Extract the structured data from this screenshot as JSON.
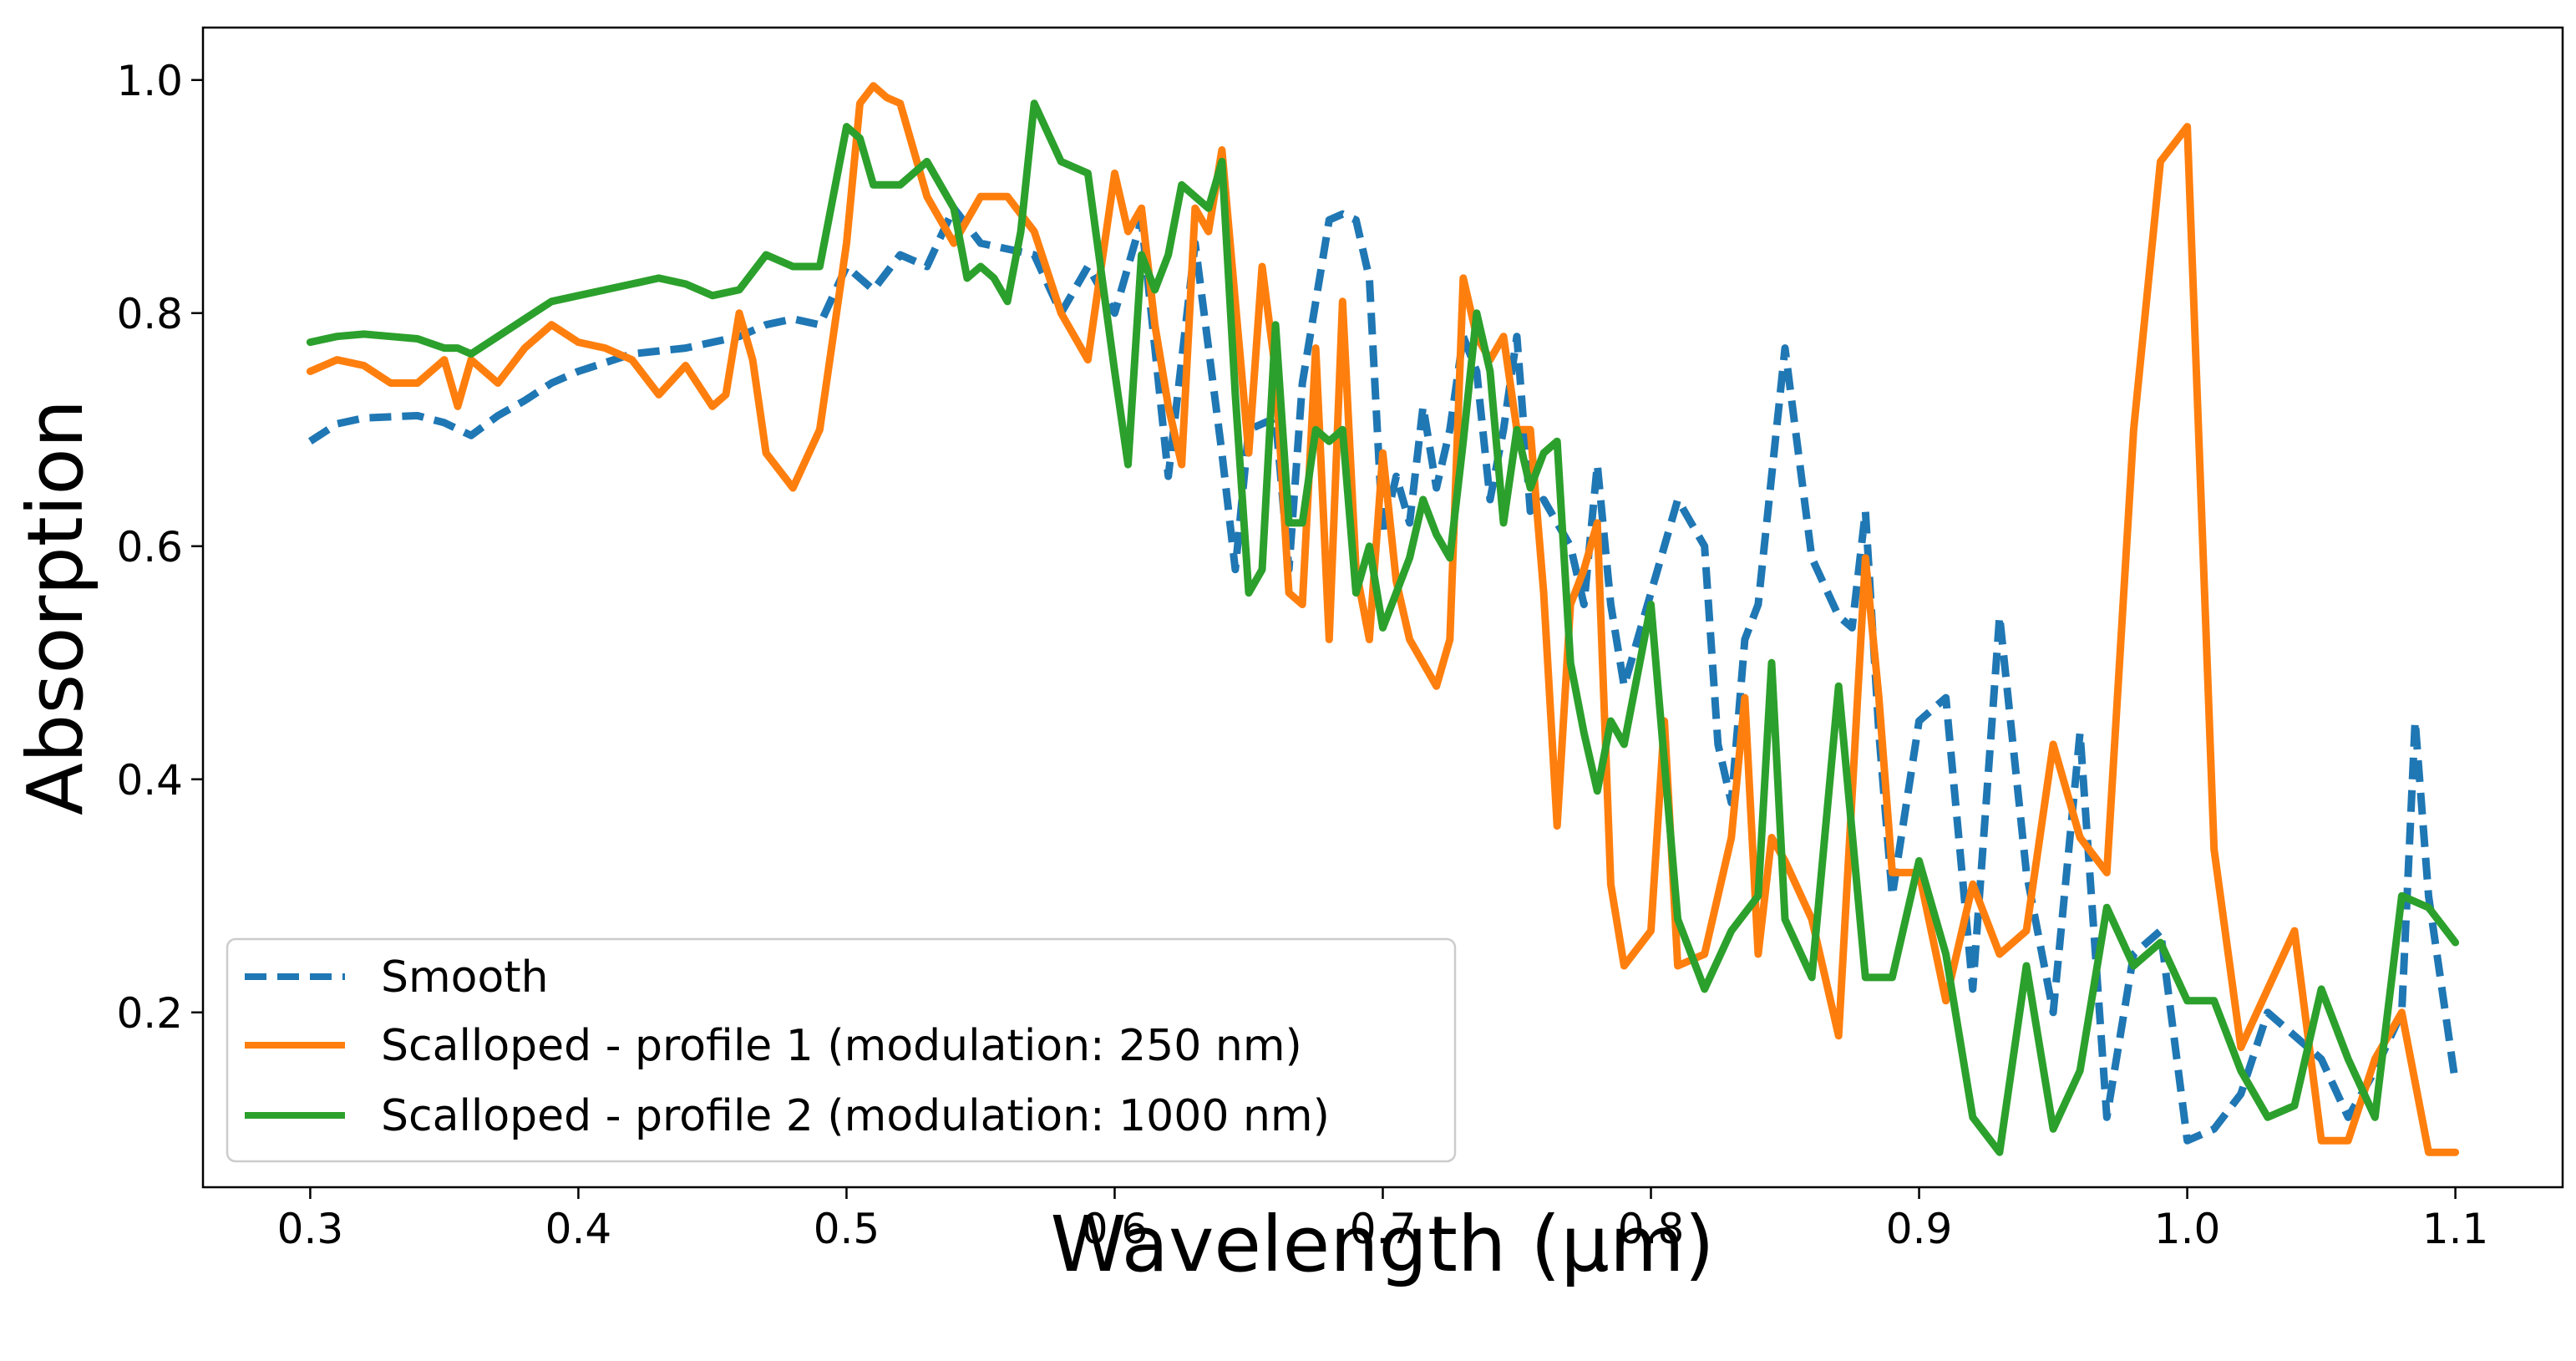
{
  "chart_data": {
    "type": "line",
    "title": "",
    "xlabel": "Wavelength (µm)",
    "ylabel": "Absorption",
    "xlim": [
      0.26,
      1.14
    ],
    "ylim": [
      0.05,
      1.045
    ],
    "xticks": [
      0.3,
      0.4,
      0.5,
      0.6,
      0.7,
      0.8,
      0.9,
      1.0,
      1.1
    ],
    "xtick_labels": [
      "0.3",
      "0.4",
      "0.5",
      "0.6",
      "0.7",
      "0.8",
      "0.9",
      "1.0",
      "1.1"
    ],
    "yticks": [
      0.2,
      0.4,
      0.6,
      0.8,
      1.0
    ],
    "ytick_labels": [
      "0.2",
      "0.4",
      "0.6",
      "0.8",
      "1.0"
    ],
    "grid": false,
    "legend_position": "lower-left",
    "series": [
      {
        "name": "Smooth",
        "color": "#1f77b4",
        "style": "dashed",
        "x": [
          0.3,
          0.31,
          0.32,
          0.34,
          0.35,
          0.36,
          0.37,
          0.38,
          0.39,
          0.4,
          0.42,
          0.44,
          0.46,
          0.47,
          0.48,
          0.49,
          0.5,
          0.51,
          0.52,
          0.53,
          0.54,
          0.55,
          0.56,
          0.57,
          0.58,
          0.59,
          0.6,
          0.61,
          0.62,
          0.63,
          0.64,
          0.645,
          0.65,
          0.66,
          0.665,
          0.67,
          0.68,
          0.685,
          0.69,
          0.695,
          0.7,
          0.705,
          0.71,
          0.715,
          0.72,
          0.725,
          0.73,
          0.735,
          0.74,
          0.745,
          0.75,
          0.755,
          0.76,
          0.765,
          0.77,
          0.775,
          0.78,
          0.785,
          0.79,
          0.8,
          0.81,
          0.82,
          0.825,
          0.83,
          0.835,
          0.84,
          0.85,
          0.86,
          0.87,
          0.875,
          0.88,
          0.885,
          0.89,
          0.9,
          0.91,
          0.92,
          0.93,
          0.94,
          0.95,
          0.96,
          0.97,
          0.98,
          0.99,
          1.0,
          1.01,
          1.02,
          1.03,
          1.04,
          1.05,
          1.06,
          1.07,
          1.08,
          1.085,
          1.09,
          1.1
        ],
        "y": [
          0.69,
          0.705,
          0.71,
          0.712,
          0.706,
          0.695,
          0.712,
          0.725,
          0.74,
          0.75,
          0.765,
          0.77,
          0.78,
          0.79,
          0.795,
          0.79,
          0.84,
          0.82,
          0.85,
          0.84,
          0.89,
          0.86,
          0.855,
          0.85,
          0.8,
          0.84,
          0.8,
          0.88,
          0.66,
          0.86,
          0.68,
          0.58,
          0.7,
          0.71,
          0.58,
          0.74,
          0.88,
          0.885,
          0.88,
          0.83,
          0.61,
          0.66,
          0.62,
          0.72,
          0.65,
          0.7,
          0.78,
          0.75,
          0.64,
          0.7,
          0.78,
          0.63,
          0.64,
          0.62,
          0.6,
          0.55,
          0.67,
          0.55,
          0.48,
          0.56,
          0.64,
          0.6,
          0.43,
          0.38,
          0.52,
          0.55,
          0.77,
          0.59,
          0.54,
          0.53,
          0.63,
          0.44,
          0.3,
          0.45,
          0.47,
          0.22,
          0.54,
          0.32,
          0.2,
          0.44,
          0.11,
          0.25,
          0.27,
          0.09,
          0.1,
          0.13,
          0.2,
          0.18,
          0.16,
          0.11,
          0.15,
          0.2,
          0.45,
          0.3,
          0.14
        ]
      },
      {
        "name": "Scalloped - profile 1 (modulation: 250 nm)",
        "color": "#ff7f0e",
        "style": "solid",
        "x": [
          0.3,
          0.31,
          0.32,
          0.33,
          0.34,
          0.35,
          0.355,
          0.36,
          0.37,
          0.38,
          0.39,
          0.4,
          0.41,
          0.42,
          0.43,
          0.44,
          0.45,
          0.455,
          0.46,
          0.465,
          0.47,
          0.48,
          0.49,
          0.5,
          0.505,
          0.51,
          0.515,
          0.52,
          0.53,
          0.54,
          0.55,
          0.56,
          0.57,
          0.58,
          0.59,
          0.6,
          0.605,
          0.61,
          0.615,
          0.62,
          0.625,
          0.63,
          0.635,
          0.64,
          0.645,
          0.65,
          0.655,
          0.66,
          0.665,
          0.67,
          0.675,
          0.68,
          0.685,
          0.69,
          0.695,
          0.7,
          0.705,
          0.71,
          0.72,
          0.725,
          0.73,
          0.735,
          0.74,
          0.745,
          0.75,
          0.755,
          0.76,
          0.765,
          0.77,
          0.775,
          0.78,
          0.785,
          0.79,
          0.8,
          0.805,
          0.81,
          0.82,
          0.83,
          0.835,
          0.84,
          0.845,
          0.85,
          0.86,
          0.87,
          0.88,
          0.885,
          0.89,
          0.9,
          0.91,
          0.92,
          0.93,
          0.94,
          0.95,
          0.96,
          0.97,
          0.98,
          0.99,
          1.0,
          1.01,
          1.02,
          1.03,
          1.04,
          1.05,
          1.06,
          1.07,
          1.08,
          1.09,
          1.1
        ],
        "y": [
          0.75,
          0.76,
          0.755,
          0.74,
          0.74,
          0.76,
          0.72,
          0.76,
          0.74,
          0.77,
          0.79,
          0.775,
          0.77,
          0.76,
          0.73,
          0.755,
          0.72,
          0.73,
          0.8,
          0.76,
          0.68,
          0.65,
          0.7,
          0.86,
          0.98,
          0.995,
          0.985,
          0.98,
          0.9,
          0.86,
          0.9,
          0.9,
          0.87,
          0.8,
          0.76,
          0.92,
          0.87,
          0.89,
          0.79,
          0.72,
          0.67,
          0.89,
          0.87,
          0.94,
          0.81,
          0.68,
          0.84,
          0.75,
          0.56,
          0.55,
          0.77,
          0.52,
          0.81,
          0.58,
          0.52,
          0.68,
          0.57,
          0.52,
          0.48,
          0.52,
          0.83,
          0.78,
          0.76,
          0.78,
          0.7,
          0.7,
          0.56,
          0.36,
          0.55,
          0.58,
          0.62,
          0.31,
          0.24,
          0.27,
          0.45,
          0.24,
          0.25,
          0.35,
          0.47,
          0.25,
          0.35,
          0.33,
          0.28,
          0.18,
          0.59,
          0.47,
          0.32,
          0.32,
          0.21,
          0.31,
          0.25,
          0.27,
          0.43,
          0.35,
          0.32,
          0.7,
          0.93,
          0.96,
          0.34,
          0.17,
          0.22,
          0.27,
          0.09,
          0.09,
          0.16,
          0.2,
          0.08,
          0.08
        ]
      },
      {
        "name": "Scalloped - profile 2 (modulation: 1000 nm)",
        "color": "#2ca02c",
        "style": "solid",
        "x": [
          0.3,
          0.31,
          0.32,
          0.33,
          0.34,
          0.35,
          0.355,
          0.36,
          0.37,
          0.38,
          0.39,
          0.4,
          0.41,
          0.42,
          0.43,
          0.44,
          0.45,
          0.46,
          0.47,
          0.48,
          0.49,
          0.5,
          0.505,
          0.51,
          0.52,
          0.53,
          0.54,
          0.545,
          0.55,
          0.555,
          0.56,
          0.565,
          0.57,
          0.58,
          0.59,
          0.6,
          0.605,
          0.61,
          0.615,
          0.62,
          0.625,
          0.63,
          0.635,
          0.64,
          0.645,
          0.65,
          0.655,
          0.66,
          0.665,
          0.67,
          0.675,
          0.68,
          0.685,
          0.69,
          0.695,
          0.7,
          0.705,
          0.71,
          0.715,
          0.72,
          0.725,
          0.73,
          0.735,
          0.74,
          0.745,
          0.75,
          0.755,
          0.76,
          0.765,
          0.77,
          0.775,
          0.78,
          0.785,
          0.79,
          0.8,
          0.81,
          0.82,
          0.83,
          0.84,
          0.845,
          0.85,
          0.86,
          0.87,
          0.88,
          0.89,
          0.9,
          0.91,
          0.92,
          0.93,
          0.94,
          0.95,
          0.96,
          0.97,
          0.98,
          0.99,
          1.0,
          1.01,
          1.02,
          1.03,
          1.04,
          1.05,
          1.06,
          1.07,
          1.08,
          1.09,
          1.1
        ],
        "y": [
          0.775,
          0.78,
          0.782,
          0.78,
          0.778,
          0.77,
          0.77,
          0.765,
          0.78,
          0.795,
          0.81,
          0.815,
          0.82,
          0.825,
          0.83,
          0.825,
          0.815,
          0.82,
          0.85,
          0.84,
          0.84,
          0.96,
          0.95,
          0.91,
          0.91,
          0.93,
          0.89,
          0.83,
          0.84,
          0.83,
          0.81,
          0.87,
          0.98,
          0.93,
          0.92,
          0.75,
          0.67,
          0.85,
          0.82,
          0.85,
          0.91,
          0.9,
          0.89,
          0.93,
          0.73,
          0.56,
          0.58,
          0.79,
          0.62,
          0.62,
          0.7,
          0.69,
          0.7,
          0.56,
          0.6,
          0.53,
          0.56,
          0.59,
          0.64,
          0.61,
          0.59,
          0.69,
          0.8,
          0.75,
          0.62,
          0.7,
          0.65,
          0.68,
          0.69,
          0.5,
          0.44,
          0.39,
          0.45,
          0.43,
          0.55,
          0.28,
          0.22,
          0.27,
          0.3,
          0.5,
          0.28,
          0.23,
          0.48,
          0.23,
          0.23,
          0.33,
          0.25,
          0.11,
          0.08,
          0.24,
          0.1,
          0.15,
          0.29,
          0.24,
          0.26,
          0.21,
          0.21,
          0.15,
          0.11,
          0.12,
          0.22,
          0.16,
          0.11,
          0.3,
          0.29,
          0.26
        ]
      }
    ]
  }
}
